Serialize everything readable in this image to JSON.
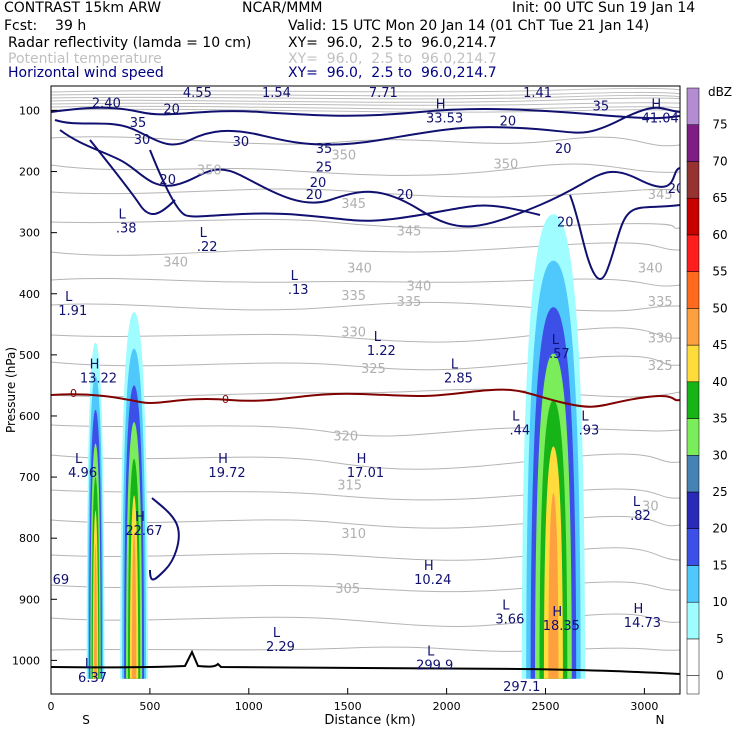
{
  "header": {
    "model": "CONTRAST 15km ARW",
    "org": "NCAR/MMM",
    "init": "Init: 00 UTC Sun 19 Jan 14",
    "fcst": "Fcst:    39 h",
    "valid": "Valid: 15 UTC Mon 20 Jan 14 (01 ChT Tue 21 Jan 14)",
    "fields": [
      {
        "label": "Radar reflectivity (lamda = 10 cm)",
        "xy": "XY=  96.0,  2.5 to  96.0,214.7",
        "color": "#000000"
      },
      {
        "label": "Potential temperature",
        "xy": "XY=  96.0,  2.5 to  96.0,214.7",
        "color": "#c0c0c0"
      },
      {
        "label": "Horizontal wind speed",
        "xy": "XY=  96.0,  2.5 to  96.0,214.7",
        "color": "#000080"
      }
    ]
  },
  "chart_data": {
    "type": "cross-section",
    "xlabel": "Distance (km)",
    "ylabel": "Pressure (hPa)",
    "xlim": [
      0,
      3180
    ],
    "ylim": [
      1055,
      60
    ],
    "x_ticks": [
      0,
      500,
      1000,
      1500,
      2000,
      2500,
      3000
    ],
    "y_ticks": [
      100,
      200,
      300,
      400,
      500,
      600,
      700,
      800,
      900,
      1000
    ],
    "end_labels": {
      "left": "S",
      "right": "N"
    },
    "colorbar": {
      "unit": "dBZ",
      "levels": [
        0,
        5,
        10,
        15,
        20,
        25,
        30,
        35,
        40,
        45,
        50,
        55,
        60,
        65,
        70,
        75
      ],
      "colors": [
        "#ffffff",
        "#9ffcff",
        "#4fc8fc",
        "#3c50e8",
        "#2a2ab8",
        "#4682b4",
        "#7ced5a",
        "#16b416",
        "#ffdc3c",
        "#ffa040",
        "#ff6a1e",
        "#ff1e1e",
        "#c80000",
        "#963232",
        "#7e1e84",
        "#b48cd2"
      ]
    },
    "reflectivity_cells": [
      {
        "x": [
          180,
          270
        ],
        "top": 480
      },
      {
        "x": [
          350,
          490
        ],
        "top": 430
      },
      {
        "x": [
          2380,
          2700
        ],
        "top": 270
      }
    ],
    "freezing_level": {
      "label": "0",
      "p": 555
    },
    "theta_labels": [
      {
        "x": 800,
        "p": 205,
        "t": "350"
      },
      {
        "x": 1480,
        "p": 180,
        "t": "350"
      },
      {
        "x": 2300,
        "p": 195,
        "t": "350"
      },
      {
        "x": 1530,
        "p": 260,
        "t": "345"
      },
      {
        "x": 1810,
        "p": 305,
        "t": "345"
      },
      {
        "x": 3080,
        "p": 245,
        "t": "345"
      },
      {
        "x": 630,
        "p": 355,
        "t": "340"
      },
      {
        "x": 1560,
        "p": 365,
        "t": "340"
      },
      {
        "x": 1860,
        "p": 395,
        "t": "340"
      },
      {
        "x": 3030,
        "p": 365,
        "t": "340"
      },
      {
        "x": 1530,
        "p": 410,
        "t": "335"
      },
      {
        "x": 1810,
        "p": 420,
        "t": "335"
      },
      {
        "x": 3080,
        "p": 420,
        "t": "335"
      },
      {
        "x": 1530,
        "p": 470,
        "t": "330"
      },
      {
        "x": 3080,
        "p": 480,
        "t": "330"
      },
      {
        "x": 1630,
        "p": 530,
        "t": "325"
      },
      {
        "x": 3080,
        "p": 525,
        "t": "325"
      },
      {
        "x": 1490,
        "p": 640,
        "t": "320"
      },
      {
        "x": 1510,
        "p": 720,
        "t": "315"
      },
      {
        "x": 1530,
        "p": 800,
        "t": "310"
      },
      {
        "x": 1500,
        "p": 890,
        "t": "305"
      },
      {
        "x": 3030,
        "p": 755,
        "t": "30"
      }
    ],
    "wind_labels": [
      {
        "x": 610,
        "p": 105,
        "t": "20"
      },
      {
        "x": 440,
        "p": 127,
        "t": "35"
      },
      {
        "x": 460,
        "p": 155,
        "t": "30"
      },
      {
        "x": 590,
        "p": 220,
        "t": "20"
      },
      {
        "x": 960,
        "p": 158,
        "t": "30"
      },
      {
        "x": 1380,
        "p": 170,
        "t": "35"
      },
      {
        "x": 1380,
        "p": 200,
        "t": "25"
      },
      {
        "x": 1350,
        "p": 225,
        "t": "20"
      },
      {
        "x": 1330,
        "p": 245,
        "t": "20"
      },
      {
        "x": 1790,
        "p": 245,
        "t": "20"
      },
      {
        "x": 2310,
        "p": 125,
        "t": "20"
      },
      {
        "x": 2590,
        "p": 170,
        "t": "20"
      },
      {
        "x": 2780,
        "p": 100,
        "t": "35"
      },
      {
        "x": 3160,
        "p": 235,
        "t": "20"
      },
      {
        "x": 2600,
        "p": 290,
        "t": "20"
      }
    ],
    "hl_markers": [
      {
        "x": 280,
        "p": 95,
        "l": "",
        "v": "2.40"
      },
      {
        "x": 140,
        "p": 70,
        "l": "L",
        "v": ""
      },
      {
        "x": 740,
        "p": 78,
        "l": "L",
        "v": "4.55"
      },
      {
        "x": 1140,
        "p": 78,
        "l": "L",
        "v": "1.54"
      },
      {
        "x": 1680,
        "p": 78,
        "l": "L",
        "v": "7.71"
      },
      {
        "x": 2460,
        "p": 78,
        "l": "L",
        "v": "1.41"
      },
      {
        "x": 1990,
        "p": 120,
        "l": "H",
        "v": "33.53"
      },
      {
        "x": 3080,
        "p": 120,
        "l": "H",
        "v": "41.04"
      },
      {
        "x": 380,
        "p": 300,
        "l": "L",
        "v": ".38"
      },
      {
        "x": 790,
        "p": 330,
        "l": "L",
        "v": ".22"
      },
      {
        "x": 1250,
        "p": 400,
        "l": "L",
        "v": ".13"
      },
      {
        "x": 110,
        "p": 435,
        "l": "L",
        "v": "1.91"
      },
      {
        "x": 1670,
        "p": 500,
        "l": "L",
        "v": "1.22"
      },
      {
        "x": 2060,
        "p": 545,
        "l": "L",
        "v": "2.85"
      },
      {
        "x": 2570,
        "p": 505,
        "l": "L",
        "v": ".57"
      },
      {
        "x": 240,
        "p": 545,
        "l": "H",
        "v": "13.22"
      },
      {
        "x": 2370,
        "p": 630,
        "l": "L",
        "v": ".44"
      },
      {
        "x": 2720,
        "p": 630,
        "l": "L",
        "v": ".93"
      },
      {
        "x": 160,
        "p": 700,
        "l": "L",
        "v": "4.96"
      },
      {
        "x": 890,
        "p": 700,
        "l": "H",
        "v": "19.72"
      },
      {
        "x": 1590,
        "p": 700,
        "l": "H",
        "v": "17.01"
      },
      {
        "x": 2980,
        "p": 770,
        "l": "L",
        "v": ".82"
      },
      {
        "x": 470,
        "p": 795,
        "l": "H",
        "v": "22.67"
      },
      {
        "x": 50,
        "p": 875,
        "l": "",
        "v": "69"
      },
      {
        "x": 1930,
        "p": 875,
        "l": "H",
        "v": "10.24"
      },
      {
        "x": 2320,
        "p": 940,
        "l": "L",
        "v": "3.66"
      },
      {
        "x": 2580,
        "p": 950,
        "l": "H",
        "v": "18.35"
      },
      {
        "x": 2990,
        "p": 945,
        "l": "H",
        "v": "14.73"
      },
      {
        "x": 1160,
        "p": 985,
        "l": "L",
        "v": "2.29"
      },
      {
        "x": 1940,
        "p": 1015,
        "l": "L",
        "v": "299.9"
      },
      {
        "x": 210,
        "p": 1035,
        "l": "L",
        "v": "6.37"
      },
      {
        "x": 2380,
        "p": 1050,
        "l": "",
        "v": "297.1"
      }
    ]
  }
}
